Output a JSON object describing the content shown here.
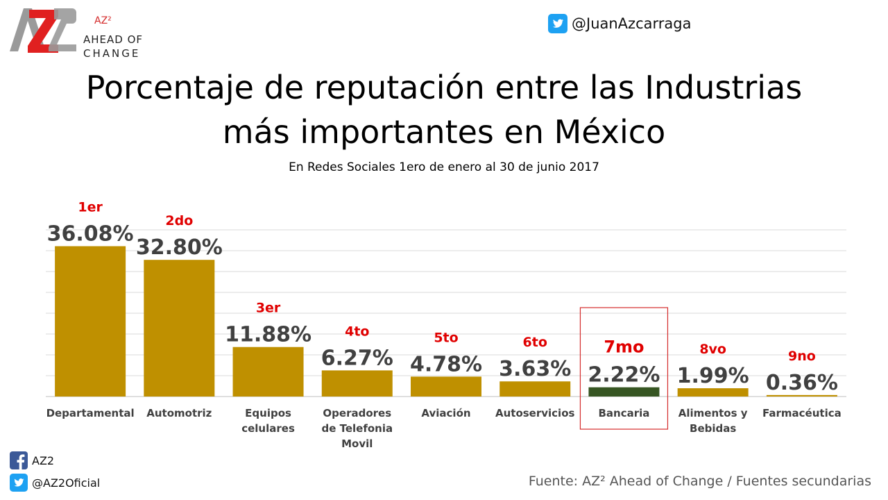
{
  "logo": {
    "superscript": "AZ²",
    "line1": "AHEAD OF",
    "line2": "CHANGE"
  },
  "twitter_handle_top": "@JuanAzcarraga",
  "title_line1": "Porcentaje de reputación entre las Industrias",
  "title_line2": "más importantes en México",
  "subtitle": "En Redes Sociales 1ero de enero al 30 de junio 2017",
  "footer": {
    "facebook": "AZ2",
    "twitter": "@AZ2Oficial",
    "source": "Fuente: AZ² Ahead of Change / Fuentes secundarias"
  },
  "colors": {
    "bar": "#bf9000",
    "highlight_bar": "#375623",
    "rank": "#e00000",
    "value": "#404040",
    "highlight_box": "#d42a2a"
  },
  "chart_data": {
    "type": "bar",
    "categories": [
      [
        "Departamental"
      ],
      [
        "Automotriz"
      ],
      [
        "Equipos",
        "celulares"
      ],
      [
        "Operadores",
        "de Telefonia",
        "Movil"
      ],
      [
        "Aviación"
      ],
      [
        "Autoservicios"
      ],
      [
        "Bancaria"
      ],
      [
        "Alimentos y",
        "Bebidas"
      ],
      [
        "Farmacéutica"
      ]
    ],
    "values": [
      36.08,
      32.8,
      11.88,
      6.27,
      4.78,
      3.63,
      2.22,
      1.99,
      0.36
    ],
    "value_labels": [
      "36.08%",
      "32.80%",
      "11.88%",
      "6.27%",
      "4.78%",
      "3.63%",
      "2.22%",
      "1.99%",
      "0.36%"
    ],
    "rank_labels": [
      "1er",
      "2do",
      "3er",
      "4to",
      "5to",
      "6to",
      "7mo",
      "8vo",
      "9no"
    ],
    "highlight_index": 6,
    "ylim": [
      0,
      40
    ],
    "grid": true
  }
}
